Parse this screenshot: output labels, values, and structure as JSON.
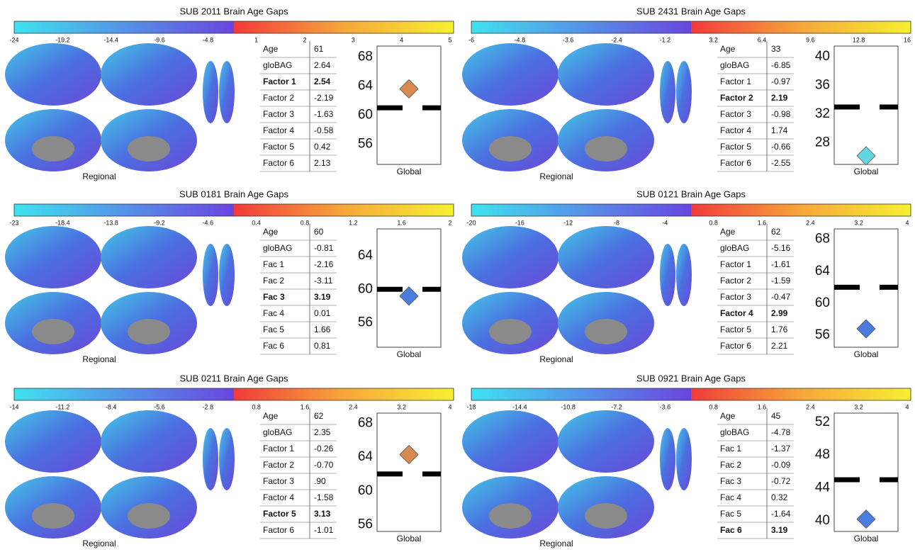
{
  "panels": [
    {
      "title": "SUB 2011 Brain Age Gaps",
      "colorbar_ticks": [
        -24,
        -19.2,
        -14.4,
        -9.6,
        -4.8,
        1,
        2,
        3,
        4,
        5
      ],
      "regional_label": "Regional",
      "table": {
        "rows": [
          [
            "Age",
            "61"
          ],
          [
            "gloBAG",
            "2.64"
          ],
          [
            "Factor 1",
            "2.54"
          ],
          [
            "Factor 2",
            "-2.19"
          ],
          [
            "Factor 3",
            "-1.63"
          ],
          [
            "Factor 4",
            "-0.58"
          ],
          [
            "Factor 5",
            "0.42"
          ],
          [
            "Factor 6",
            "2.13"
          ]
        ],
        "bold_row": 2
      },
      "global": {
        "label": "Global",
        "ylim": [
          53.2,
          69.5
        ],
        "yticks": [
          56,
          60,
          64,
          68
        ],
        "age_line": 61,
        "diamond": 63.6,
        "diamond_color": "#d98a4e"
      }
    },
    {
      "title": "SUB 2431 Brain Age Gaps",
      "colorbar_ticks": [
        -6,
        -4.8,
        -3.6,
        -2.4,
        -1.2,
        3.2,
        6.4,
        9.6,
        12.8,
        16
      ],
      "regional_label": "Regional",
      "table": {
        "rows": [
          [
            "Age",
            "33"
          ],
          [
            "gloBAG",
            "-6.85"
          ],
          [
            "Factor 1",
            "-0.97"
          ],
          [
            "Factor 2",
            "2.19"
          ],
          [
            "Factor 3",
            "-0.98"
          ],
          [
            "Factor 4",
            "1.74"
          ],
          [
            "Factor 5",
            "-0.66"
          ],
          [
            "Factor 6",
            "-2.55"
          ]
        ],
        "bold_row": 3
      },
      "global": {
        "label": "Global",
        "ylim": [
          25,
          41.5
        ],
        "yticks": [
          28,
          32,
          36,
          40
        ],
        "age_line": 33,
        "diamond": 26.2,
        "diamond_color": "#62d4e2"
      }
    },
    {
      "title": "SUB 0181 Brain Age Gaps",
      "colorbar_ticks": [
        -23,
        -18.4,
        -13.8,
        -9.2,
        -4.6,
        0.4,
        0.8,
        1.2,
        1.6,
        2
      ],
      "regional_label": "Regional",
      "table": {
        "rows": [
          [
            "Age",
            "60"
          ],
          [
            "gloBAG",
            "-0.81"
          ],
          [
            "Fac 1",
            "-2.16"
          ],
          [
            "Fac 2",
            "-3.11"
          ],
          [
            "Fac 3",
            "3.19"
          ],
          [
            "Fac 4",
            "0.01"
          ],
          [
            "Fac 5",
            "1.66"
          ],
          [
            "Fac 6",
            "0.81"
          ]
        ],
        "bold_row": 4
      },
      "global": {
        "label": "Global",
        "ylim": [
          53.1,
          67.2
        ],
        "yticks": [
          56,
          60,
          64
        ],
        "age_line": 60,
        "diamond": 59.2,
        "diamond_color": "#4a7de0"
      }
    },
    {
      "title": "SUB 0121 Brain Age Gaps",
      "colorbar_ticks": [
        -20,
        -16,
        -12,
        -8,
        -4,
        0.8,
        1.6,
        2.4,
        3.2,
        4
      ],
      "regional_label": "Regional",
      "table": {
        "rows": [
          [
            "Age",
            "62"
          ],
          [
            "gloBAG",
            "-5.16"
          ],
          [
            "Factor 1",
            "-1.61"
          ],
          [
            "Factor 2",
            "-1.59"
          ],
          [
            "Factor 3",
            "-0.47"
          ],
          [
            "Factor 4",
            "2.99"
          ],
          [
            "Factor 5",
            "1.76"
          ],
          [
            "Factor 6",
            "2.21"
          ]
        ],
        "bold_row": 5
      },
      "global": {
        "label": "Global",
        "ylim": [
          54.5,
          69.3
        ],
        "yticks": [
          56,
          60,
          64,
          68
        ],
        "age_line": 62,
        "diamond": 56.8,
        "diamond_color": "#4a7de0"
      }
    },
    {
      "title": "SUB 0211 Brain Age Gaps",
      "colorbar_ticks": [
        -14,
        -11.2,
        -8.4,
        -5.6,
        -2.8,
        0.8,
        1.6,
        2.4,
        3.2,
        4
      ],
      "regional_label": "Regional",
      "table": {
        "rows": [
          [
            "Age",
            "62"
          ],
          [
            "gloBAG",
            "2.35"
          ],
          [
            "Factor 1",
            "-0.26"
          ],
          [
            "Factor 2",
            "-0.70"
          ],
          [
            "Factor 3",
            ".90"
          ],
          [
            "Factor 4",
            "-1.58"
          ],
          [
            "Factor 5",
            "3.13"
          ],
          [
            "Factor 6",
            "-1.01"
          ]
        ],
        "bold_row": 6
      },
      "global": {
        "label": "Global",
        "ylim": [
          55.2,
          69.2
        ],
        "yticks": [
          56,
          60,
          64,
          68
        ],
        "age_line": 62,
        "diamond": 64.3,
        "diamond_color": "#d98a4e"
      }
    },
    {
      "title": "SUB 0921 Brain Age Gaps",
      "colorbar_ticks": [
        -18,
        -14.4,
        -10.8,
        -7.2,
        -3.6,
        0.8,
        1.6,
        2.4,
        3.2,
        4
      ],
      "regional_label": "Regional",
      "table": {
        "rows": [
          [
            "Age",
            "45"
          ],
          [
            "gloBAG",
            "-4.78"
          ],
          [
            "Fac 1",
            "-1.37"
          ],
          [
            "Fac 2",
            "-0.09"
          ],
          [
            "Fac 3",
            "-0.72"
          ],
          [
            "Fac 4",
            "0.32"
          ],
          [
            "Fac 5",
            "-1.64"
          ],
          [
            "Fac 6",
            "3.19"
          ]
        ],
        "bold_row": 7
      },
      "global": {
        "label": "Global",
        "ylim": [
          38.7,
          53.1
        ],
        "yticks": [
          40,
          44,
          48,
          52
        ],
        "age_line": 45,
        "diamond": 40.2,
        "diamond_color": "#4a7de0"
      }
    }
  ]
}
